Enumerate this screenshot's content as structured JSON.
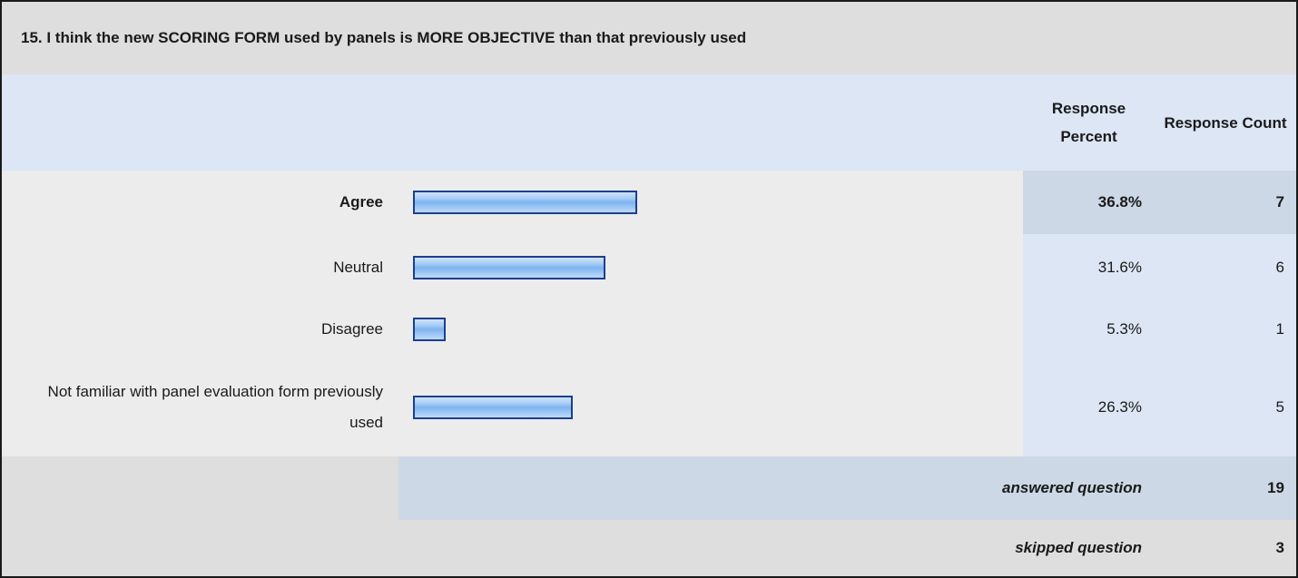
{
  "title": "15. I think the new SCORING FORM used by panels is MORE OBJECTIVE than that previously used",
  "columns": {
    "percent": "Response Percent",
    "count": "Response Count"
  },
  "rows": [
    {
      "label": "Agree",
      "percent": "36.8%",
      "count": "7",
      "bold": true
    },
    {
      "label": "Neutral",
      "percent": "31.6%",
      "count": "6",
      "bold": false
    },
    {
      "label": "Disagree",
      "percent": "5.3%",
      "count": "1",
      "bold": false
    },
    {
      "label": "Not familiar with panel evaluation form previously used",
      "percent": "26.3%",
      "count": "5",
      "bold": false
    }
  ],
  "summary": {
    "answered_label": "answered question",
    "answered_value": "19",
    "skipped_label": "skipped question",
    "skipped_value": "3"
  },
  "colors": {
    "bar_border": "#1c3f8e",
    "bar_fill": "#7db3ef",
    "header_band": "#dce6f4",
    "highlight_cell": "#ccd8e6"
  },
  "chart_data": {
    "type": "bar",
    "orientation": "horizontal",
    "categories": [
      "Agree",
      "Neutral",
      "Disagree",
      "Not familiar with panel evaluation form previously used"
    ],
    "values": [
      36.8,
      31.6,
      5.3,
      26.3
    ],
    "counts": [
      7,
      6,
      1,
      5
    ],
    "title": "15. I think the new SCORING FORM used by panels is MORE OBJECTIVE than that previously used",
    "xlim": [
      0,
      100
    ],
    "grid": false
  }
}
